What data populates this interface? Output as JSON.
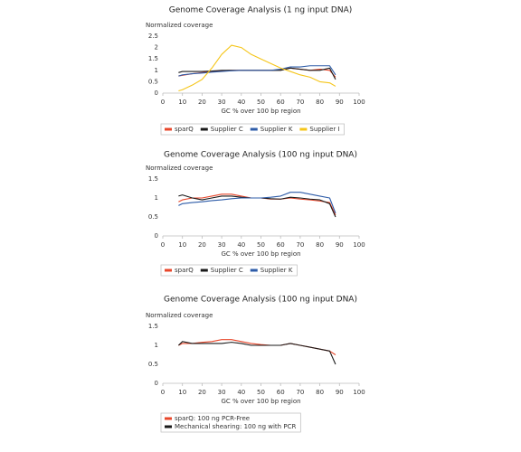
{
  "chart_data": [
    {
      "type": "line",
      "title": "Genome Coverage Analysis (1 ng input DNA)",
      "y_label": "Normalized coverage",
      "x_label": "GC % over 100 bp region",
      "x": [
        8,
        10,
        15,
        20,
        25,
        30,
        35,
        40,
        45,
        50,
        55,
        60,
        65,
        70,
        75,
        80,
        85,
        88
      ],
      "series": [
        {
          "name": "sparQ",
          "color": "#e8472b",
          "values": [
            0.75,
            0.78,
            0.85,
            0.9,
            0.95,
            0.98,
            1.0,
            1.0,
            1.0,
            1.0,
            1.0,
            1.02,
            1.1,
            1.05,
            1.0,
            1.05,
            1.0,
            0.7
          ]
        },
        {
          "name": "Supplier C",
          "color": "#1a1a1a",
          "values": [
            0.9,
            0.95,
            0.95,
            0.95,
            0.97,
            1.0,
            1.0,
            1.0,
            1.0,
            1.0,
            1.0,
            1.0,
            1.1,
            1.05,
            1.0,
            1.0,
            1.1,
            0.6
          ]
        },
        {
          "name": "Supplier K",
          "color": "#2e5ca8",
          "values": [
            0.75,
            0.8,
            0.85,
            0.88,
            0.92,
            0.95,
            0.98,
            1.0,
            1.0,
            1.0,
            1.0,
            1.05,
            1.15,
            1.15,
            1.2,
            1.2,
            1.2,
            0.8
          ]
        },
        {
          "name": "Supplier I",
          "color": "#f5c518",
          "values": [
            0.1,
            0.15,
            0.35,
            0.6,
            1.1,
            1.7,
            2.1,
            2.0,
            1.7,
            1.5,
            1.3,
            1.1,
            0.95,
            0.8,
            0.7,
            0.5,
            0.45,
            0.3
          ]
        }
      ],
      "xlim": [
        0,
        100
      ],
      "xticks": [
        0,
        10,
        20,
        30,
        40,
        50,
        60,
        70,
        80,
        90,
        100
      ],
      "ylim": [
        0,
        2.5
      ],
      "yticks": [
        0,
        0.5,
        1,
        1.5,
        2,
        2.5
      ],
      "grid": false
    },
    {
      "type": "line",
      "title": "Genome Coverage Analysis (100 ng input DNA)",
      "y_label": "Normalized coverage",
      "x_label": "GC % over 100 bp region",
      "x": [
        8,
        10,
        15,
        20,
        25,
        30,
        35,
        40,
        45,
        50,
        55,
        60,
        65,
        70,
        75,
        80,
        85,
        88
      ],
      "series": [
        {
          "name": "sparQ",
          "color": "#e8472b",
          "values": [
            0.9,
            0.95,
            1.0,
            1.0,
            1.05,
            1.1,
            1.1,
            1.05,
            1.0,
            1.0,
            0.97,
            0.97,
            1.0,
            0.97,
            0.95,
            0.92,
            0.88,
            0.55
          ]
        },
        {
          "name": "Supplier C",
          "color": "#1a1a1a",
          "values": [
            1.05,
            1.08,
            1.0,
            0.95,
            1.0,
            1.05,
            1.05,
            1.02,
            1.0,
            1.0,
            0.98,
            0.97,
            1.02,
            1.0,
            0.97,
            0.95,
            0.85,
            0.5
          ]
        },
        {
          "name": "Supplier K",
          "color": "#2e5ca8",
          "values": [
            0.8,
            0.85,
            0.88,
            0.9,
            0.93,
            0.95,
            0.98,
            1.0,
            1.0,
            1.0,
            1.02,
            1.05,
            1.15,
            1.15,
            1.1,
            1.05,
            1.0,
            0.6
          ]
        }
      ],
      "xlim": [
        0,
        100
      ],
      "xticks": [
        0,
        10,
        20,
        30,
        40,
        50,
        60,
        70,
        80,
        90,
        100
      ],
      "ylim": [
        0,
        1.5
      ],
      "yticks": [
        0,
        0.5,
        1,
        1.5
      ],
      "grid": false
    },
    {
      "type": "line",
      "title": "Genome Coverage Analysis (100 ng input DNA)",
      "y_label": "Normalized coverage",
      "x_label": "GC % over 100 bp region",
      "x": [
        8,
        10,
        15,
        20,
        25,
        30,
        35,
        40,
        45,
        50,
        55,
        60,
        65,
        70,
        75,
        80,
        85,
        88
      ],
      "series": [
        {
          "name": "sparQ: 100 ng PCR-Free",
          "color": "#e8472b",
          "values": [
            1.0,
            1.05,
            1.05,
            1.08,
            1.1,
            1.15,
            1.15,
            1.1,
            1.05,
            1.02,
            1.0,
            1.0,
            1.05,
            1.0,
            0.95,
            0.9,
            0.85,
            0.75
          ]
        },
        {
          "name": "Mechanical shearing: 100 ng with PCR",
          "color": "#1a1a1a",
          "values": [
            1.0,
            1.1,
            1.05,
            1.05,
            1.05,
            1.05,
            1.08,
            1.05,
            1.0,
            1.0,
            1.0,
            1.0,
            1.05,
            1.0,
            0.95,
            0.9,
            0.85,
            0.5
          ]
        }
      ],
      "xlim": [
        0,
        100
      ],
      "xticks": [
        0,
        10,
        20,
        30,
        40,
        50,
        60,
        70,
        80,
        90,
        100
      ],
      "ylim": [
        0,
        1.5
      ],
      "yticks": [
        0,
        0.5,
        1,
        1.5
      ],
      "grid": false
    }
  ]
}
